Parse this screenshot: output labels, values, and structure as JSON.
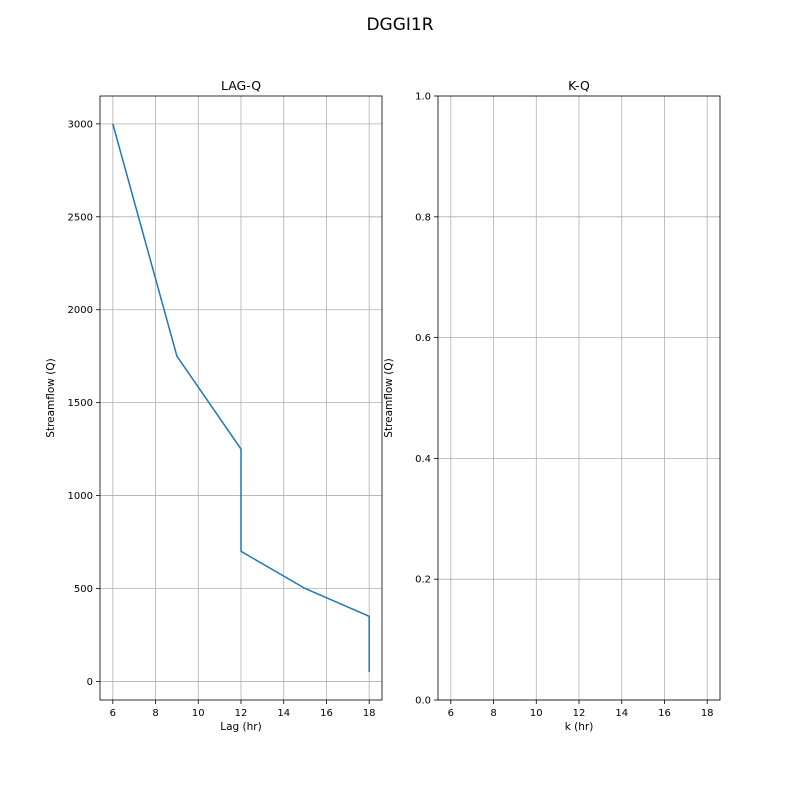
{
  "figure_title": "DGGI1R",
  "chart_data": [
    {
      "type": "line",
      "title": "LAG-Q",
      "xlabel": "Lag (hr)",
      "ylabel": "Streamflow (Q)",
      "xlim": [
        5.4,
        18.6
      ],
      "ylim": [
        -100,
        3150
      ],
      "xticks": [
        6,
        8,
        10,
        12,
        14,
        16,
        18
      ],
      "yticks": [
        0,
        500,
        1000,
        1500,
        2000,
        2500,
        3000
      ],
      "xtick_labels": [
        "6",
        "8",
        "10",
        "12",
        "14",
        "16",
        "18"
      ],
      "ytick_labels": [
        "0",
        "500",
        "1000",
        "1500",
        "2000",
        "2500",
        "3000"
      ],
      "grid": true,
      "series": [
        {
          "color": "#1f77b4",
          "points": [
            {
              "x": 6,
              "y": 3000
            },
            {
              "x": 9,
              "y": 1750
            },
            {
              "x": 12,
              "y": 1250
            },
            {
              "x": 12,
              "y": 700
            },
            {
              "x": 15,
              "y": 500
            },
            {
              "x": 18,
              "y": 350
            },
            {
              "x": 18,
              "y": 50
            }
          ]
        }
      ]
    },
    {
      "type": "line",
      "title": "K-Q",
      "xlabel": "k (hr)",
      "ylabel": "Streamflow (Q)",
      "xlim": [
        5.4,
        18.6
      ],
      "ylim": [
        0,
        1
      ],
      "xticks": [
        6,
        8,
        10,
        12,
        14,
        16,
        18
      ],
      "yticks": [
        0,
        0.2,
        0.4,
        0.6,
        0.8,
        1.0
      ],
      "xtick_labels": [
        "6",
        "8",
        "10",
        "12",
        "14",
        "16",
        "18"
      ],
      "ytick_labels": [
        "0.0",
        "0.2",
        "0.4",
        "0.6",
        "0.8",
        "1.0"
      ],
      "grid": true,
      "series": []
    }
  ]
}
